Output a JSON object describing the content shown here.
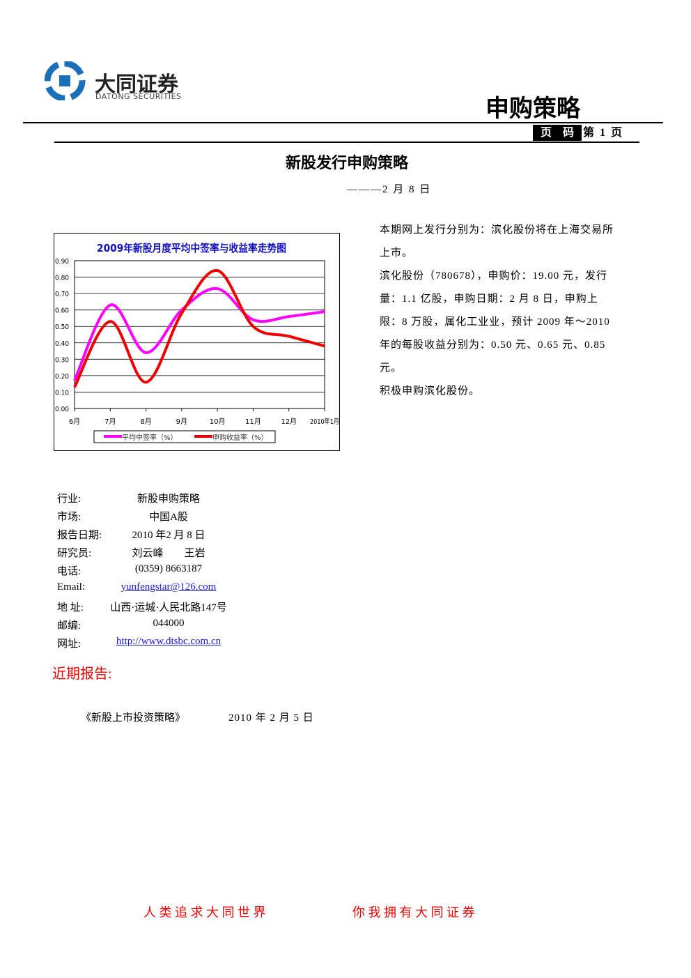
{
  "header": {
    "company": "大同证券",
    "company_en": "DATONG SECURITIES",
    "section": "申购策略",
    "page_label": "页　码",
    "page_number": "第 1 页"
  },
  "title": "新股发行申购策略",
  "date": "———2 月 8 日",
  "paragraphs": [
    "本期网上发行分别为：滨化股份将在上海交易所上市。",
    "滨化股份（780678），申购价：19.00 元，发行量：1.1 亿股，申购日期：2 月 8 日，申购上限：8 万股，属化工业业，预计 2009 年～2010 年的每股收益分别为：0.50 元、0.65 元、0.85 元。",
    "积极申购滨化股份。"
  ],
  "info": [
    [
      "行业:",
      "新股申购策略"
    ],
    [
      "市场:",
      "中国A股"
    ],
    [
      "报告日期:",
      "2010 年2 月 8 日"
    ],
    [
      "研究员:",
      "刘云峰　　王岩"
    ],
    [
      "电话:",
      "(0359) 8663187"
    ],
    [
      "Email:",
      "yunfengstar@126.com"
    ],
    [
      "地 址:",
      "山西·运城·人民北路147号"
    ],
    [
      "邮编:",
      "044000"
    ],
    [
      "网址:",
      "http://www.dtsbc.com.cn"
    ]
  ],
  "recent": {
    "heading": "近期报告:",
    "items": [
      [
        "《新股上市投资策略》",
        "2010 年 2 月 5 日"
      ]
    ]
  },
  "footer": [
    "人 类 追 求 大 同 世 界",
    "你 我 拥 有 大 同 证 券"
  ],
  "chart_data": {
    "type": "line",
    "title": "2009年新股月度平均中签率与收益率走势图",
    "categories": [
      "6月",
      "7月",
      "8月",
      "9月",
      "10月",
      "11月",
      "12月",
      "2010年1月"
    ],
    "series": [
      {
        "name": "平均中签率（%）",
        "color": "#ff00ff",
        "values": [
          0.17,
          0.63,
          0.34,
          0.6,
          0.73,
          0.54,
          0.56,
          0.59
        ]
      },
      {
        "name": "申购收益率（%）",
        "color": "#ee0000",
        "values": [
          0.13,
          0.53,
          0.16,
          0.58,
          0.84,
          0.5,
          0.44,
          0.38
        ]
      }
    ],
    "ylim": [
      0,
      0.9
    ],
    "yticks": [
      {
        "value": 0,
        "label": "0.00"
      },
      {
        "value": 0.1,
        "label": "0.10"
      },
      {
        "value": 0.2,
        "label": "0.20"
      },
      {
        "value": 0.3,
        "label": "0.30"
      },
      {
        "value": 0.4,
        "label": "0.40"
      },
      {
        "value": 0.5,
        "label": "0.50"
      },
      {
        "value": 0.6,
        "label": "0.60"
      },
      {
        "value": 0.7,
        "label": "0.70"
      },
      {
        "value": 0.8,
        "label": "0.80"
      },
      {
        "value": 0.9,
        "label": "0.90"
      }
    ],
    "grid": true,
    "legend": "bottom"
  }
}
